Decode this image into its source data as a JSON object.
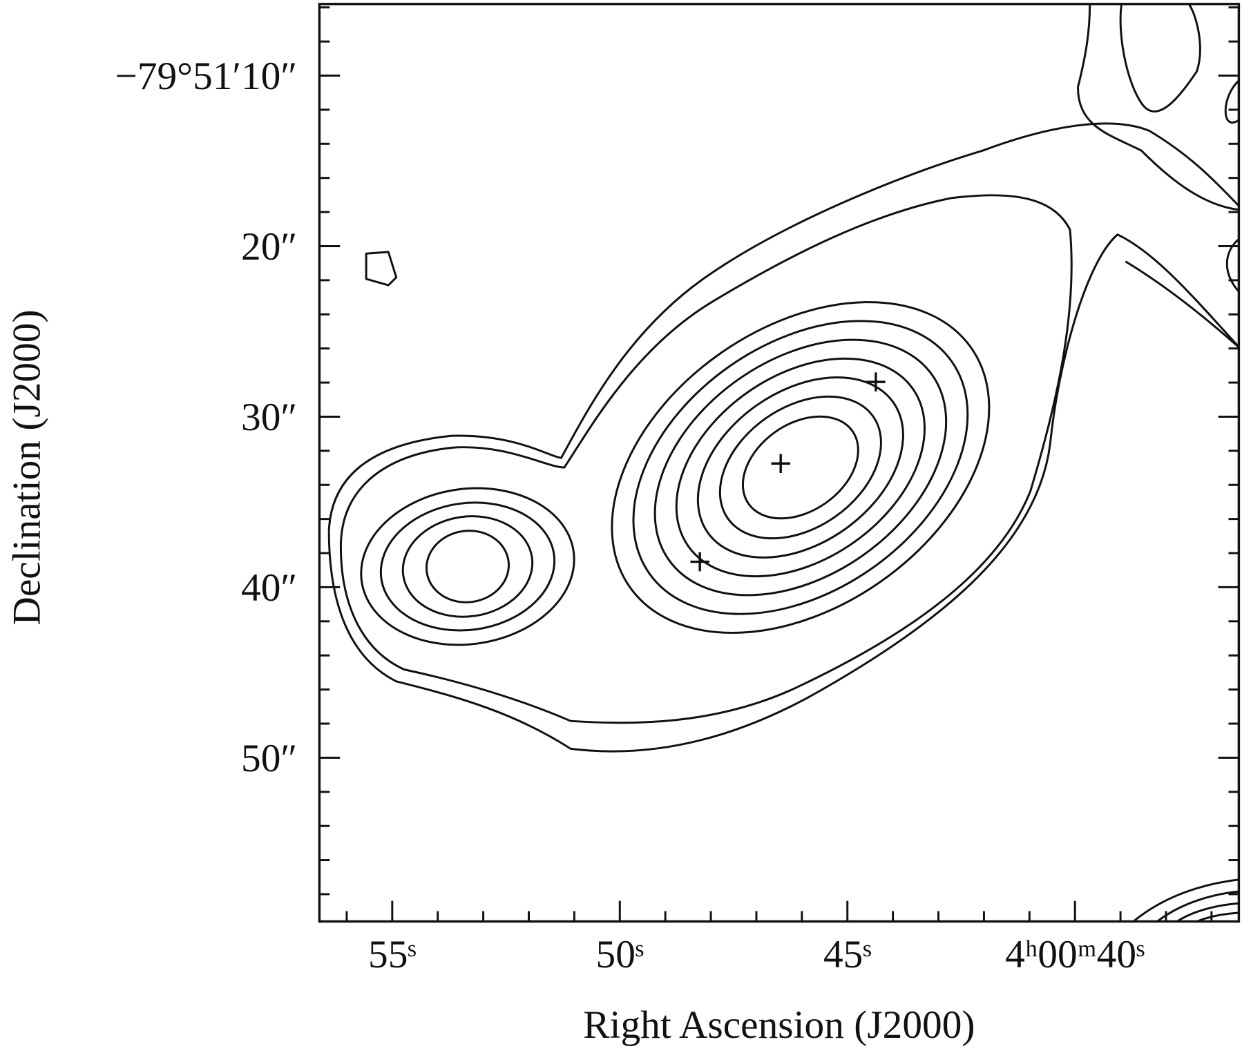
{
  "chart_data": {
    "type": "contour",
    "xlabel": "Right Ascension (J2000)",
    "ylabel": "Declination (J2000)",
    "xlim": [
      56.6,
      36.4
    ],
    "ylim": [
      5.8,
      59.6
    ],
    "xticks": [
      {
        "value": 55,
        "label": "55ˢ"
      },
      {
        "value": 50,
        "label": "50ˢ"
      },
      {
        "value": 45,
        "label": "45ˢ"
      },
      {
        "value": 40,
        "label": "4ʰ00ᵐ40ˢ"
      }
    ],
    "yticks": [
      {
        "value": 10,
        "label": "−79°51′10″"
      },
      {
        "value": 20,
        "label": "20″"
      },
      {
        "value": 30,
        "label": "30″"
      },
      {
        "value": 40,
        "label": "40″"
      },
      {
        "value": 50,
        "label": "50″"
      }
    ],
    "xminorticks": [
      56,
      54,
      53,
      52,
      51,
      49,
      48,
      47,
      46,
      44,
      43,
      42,
      41,
      39,
      38,
      37
    ],
    "yminorticks": [
      6,
      8,
      12,
      14,
      16,
      18,
      22,
      24,
      26,
      28,
      32,
      34,
      36,
      38,
      42,
      44,
      46,
      48,
      52,
      54,
      56,
      58
    ]
  }
}
